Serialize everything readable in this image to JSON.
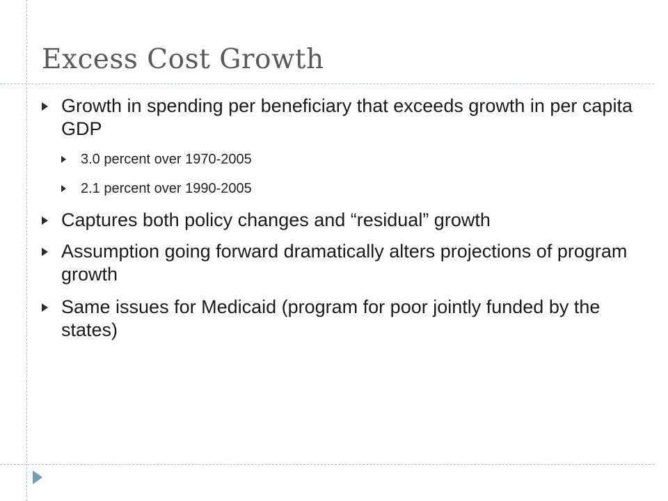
{
  "slide": {
    "title": "Excess Cost Growth",
    "bullets": [
      {
        "text": "Growth in spending per beneficiary that exceeds growth in per capita GDP",
        "sub": [
          "3.0 percent over 1970-2005",
          "2.1 percent over 1990-2005"
        ]
      },
      {
        "text": "Captures both policy changes and “residual” growth"
      },
      {
        "text": "Assumption going forward dramatically alters projections of program growth"
      },
      {
        "text": "Same issues for Medicaid (program for poor jointly funded by the states)"
      }
    ]
  },
  "icons": {
    "bullet": "triangle-right-icon",
    "corner": "triangle-right-icon"
  },
  "colors": {
    "title": "#595959",
    "text": "#1a1a1a",
    "guides": "#a9c4cf",
    "corner_arrow": "#6f9fb3"
  }
}
